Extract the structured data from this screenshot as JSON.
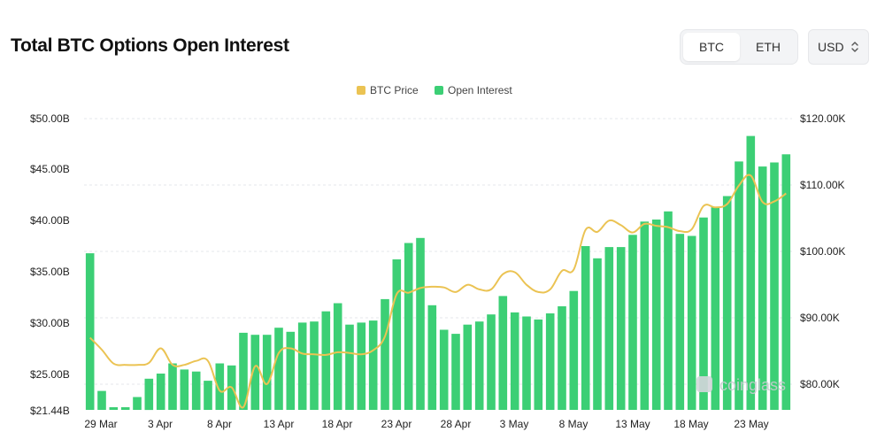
{
  "header": {
    "title": "Total BTC Options Open Interest",
    "tabs": [
      {
        "label": "BTC",
        "active": true
      },
      {
        "label": "ETH",
        "active": false
      }
    ],
    "currency_select": {
      "value": "USD"
    }
  },
  "watermark": "coinglass",
  "colors": {
    "price": "#EBC353",
    "open_interest": "#3CCF75",
    "grid": "#e5e7eb"
  },
  "chart_data": {
    "type": "bar",
    "title": "Total BTC Options Open Interest",
    "legend": {
      "position": "top-center",
      "entries": [
        "BTC Price",
        "Open Interest"
      ]
    },
    "x_tick_labels": [
      "29 Mar",
      "3 Apr",
      "8 Apr",
      "13 Apr",
      "18 Apr",
      "23 Apr",
      "28 Apr",
      "3 May",
      "8 May",
      "13 May",
      "18 May",
      "23 May"
    ],
    "y_left": {
      "ticks": [
        "$50.00B",
        "$45.00B",
        "$40.00B",
        "$35.00B",
        "$30.00B",
        "$25.00B",
        "$21.44B"
      ],
      "range": [
        21.44,
        50.0
      ],
      "unit": "B USD"
    },
    "y_right": {
      "ticks": [
        "$120.00K",
        "$110.00K",
        "$100.00K",
        "$90.00K",
        "$80.00K"
      ],
      "range": [
        76.0,
        120.0
      ],
      "unit": "K USD"
    },
    "grid": true,
    "series": [
      {
        "name": "Open Interest",
        "axis": "left",
        "type": "bar",
        "values": [
          36.8,
          23.3,
          21.7,
          21.7,
          22.7,
          24.5,
          25.0,
          26.0,
          25.4,
          25.2,
          24.3,
          26.0,
          25.8,
          29.0,
          28.8,
          28.8,
          29.5,
          29.1,
          30.0,
          30.1,
          31.1,
          31.9,
          29.8,
          30.0,
          30.2,
          32.3,
          36.2,
          37.8,
          38.3,
          31.7,
          29.3,
          28.9,
          29.8,
          30.1,
          30.8,
          32.6,
          31.0,
          30.6,
          30.3,
          30.9,
          31.6,
          33.1,
          37.5,
          36.3,
          37.4,
          37.4,
          38.6,
          39.9,
          40.1,
          40.9,
          38.7,
          38.5,
          40.3,
          41.3,
          42.4,
          45.8,
          48.3,
          45.3,
          45.7,
          46.5
        ]
      },
      {
        "name": "BTC Price",
        "axis": "right",
        "type": "line",
        "values": [
          86.9,
          85.1,
          83.0,
          82.8,
          82.8,
          83.1,
          85.3,
          82.8,
          82.8,
          83.4,
          83.4,
          78.9,
          79.4,
          76.4,
          82.6,
          79.9,
          84.6,
          85.3,
          84.5,
          84.4,
          84.3,
          84.7,
          84.6,
          84.4,
          85.0,
          87.1,
          93.5,
          93.7,
          94.4,
          94.6,
          94.5,
          93.8,
          94.9,
          94.2,
          94.2,
          96.5,
          96.8,
          94.9,
          93.8,
          94.2,
          97.0,
          97.2,
          103.2,
          102.9,
          104.6,
          103.9,
          102.8,
          104.1,
          103.8,
          103.6,
          103.0,
          103.3,
          106.8,
          106.6,
          107.1,
          109.9,
          111.4,
          107.4,
          107.5,
          108.7
        ]
      }
    ]
  }
}
